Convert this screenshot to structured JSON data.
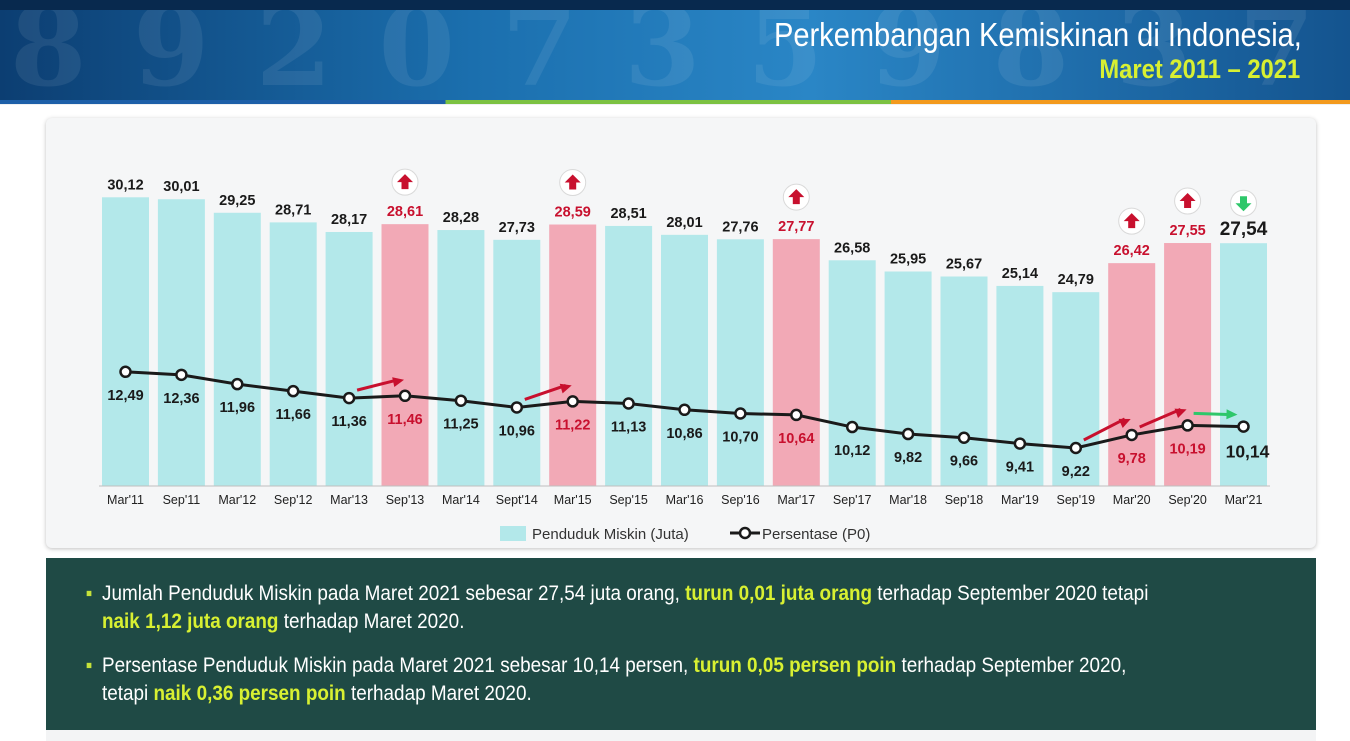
{
  "header": {
    "title": "Perkembangan Kemiskinan di Indonesia,",
    "subtitle": "Maret 2011 – 2021"
  },
  "colors": {
    "bar_normal": "#b3e8ea",
    "bar_highlight": "#f2a9b6",
    "label_highlight": "#c8102e",
    "line": "#1a1a1a",
    "arrow_up": "#c8102e",
    "arrow_down": "#2ec76a",
    "notes_bg": "#1f4a45",
    "highlight_text": "#d8f032"
  },
  "chart_data": {
    "type": "bar",
    "categories": [
      "Mar'11",
      "Sep'11",
      "Mar'12",
      "Sep'12",
      "Mar'13",
      "Sep'13",
      "Mar'14",
      "Sept'14",
      "Mar'15",
      "Sep'15",
      "Mar'16",
      "Sep'16",
      "Mar'17",
      "Sep'17",
      "Mar'18",
      "Sep'18",
      "Mar'19",
      "Sep'19",
      "Mar'20",
      "Sep'20",
      "Mar'21"
    ],
    "series": [
      {
        "name": "Penduduk Miskin (Juta)",
        "type": "bar",
        "values": [
          30.12,
          30.01,
          29.25,
          28.71,
          28.17,
          28.61,
          28.28,
          27.73,
          28.59,
          28.51,
          28.01,
          27.76,
          27.77,
          26.58,
          25.95,
          25.67,
          25.14,
          24.79,
          26.42,
          27.55,
          27.54
        ],
        "labels": [
          "30,12",
          "30,01",
          "29,25",
          "28,71",
          "28,17",
          "28,61",
          "28,28",
          "27,73",
          "28,59",
          "28,51",
          "28,01",
          "27,76",
          "27,77",
          "26,58",
          "25,95",
          "25,67",
          "25,14",
          "24,79",
          "26,42",
          "27,55",
          "27,54"
        ]
      },
      {
        "name": "Persentase (P0)",
        "type": "line",
        "values": [
          12.49,
          12.36,
          11.96,
          11.66,
          11.36,
          11.46,
          11.25,
          10.96,
          11.22,
          11.13,
          10.86,
          10.7,
          10.64,
          10.12,
          9.82,
          9.66,
          9.41,
          9.22,
          9.78,
          10.19,
          10.14
        ],
        "labels": [
          "12,49",
          "12,36",
          "11,96",
          "11,66",
          "11,36",
          "11,46",
          "11,25",
          "10,96",
          "11,22",
          "11,13",
          "10,86",
          "10,70",
          "10,64",
          "10,12",
          "9,82",
          "9,66",
          "9,41",
          "9,22",
          "9,78",
          "10,19",
          "10,14"
        ]
      }
    ],
    "highlight_indices": [
      5,
      8,
      12,
      18,
      19
    ],
    "bar_up_arrow_indices": [
      5,
      8,
      12,
      18,
      19
    ],
    "bar_down_arrow_indices": [
      20
    ],
    "line_up_arrow_indices": [
      5,
      8,
      18,
      19
    ],
    "line_down_arrow_indices": [
      20
    ],
    "emphasis_index": 20,
    "legend_position": "bottom-center",
    "grid": false
  },
  "notes": [
    {
      "parts": [
        {
          "text": "Jumlah Penduduk Miskin pada Maret 2021 sebesar 27,54 juta orang, ",
          "hl": false
        },
        {
          "text": "turun 0,01 juta orang",
          "hl": true
        },
        {
          "text": " terhadap September 2020 tetapi ",
          "hl": false
        },
        {
          "text": "naik 1,12 juta orang",
          "hl": true
        },
        {
          "text": " terhadap Maret 2020.",
          "hl": false
        }
      ]
    },
    {
      "parts": [
        {
          "text": "Persentase Penduduk Miskin pada Maret 2021 sebesar 10,14 persen, ",
          "hl": false
        },
        {
          "text": "turun 0,05 persen poin",
          "hl": true
        },
        {
          "text": " terhadap September 2020, tetapi ",
          "hl": false
        },
        {
          "text": "naik 0,36 persen poin",
          "hl": true
        },
        {
          "text": " terhadap Maret 2020.",
          "hl": false
        }
      ]
    }
  ]
}
